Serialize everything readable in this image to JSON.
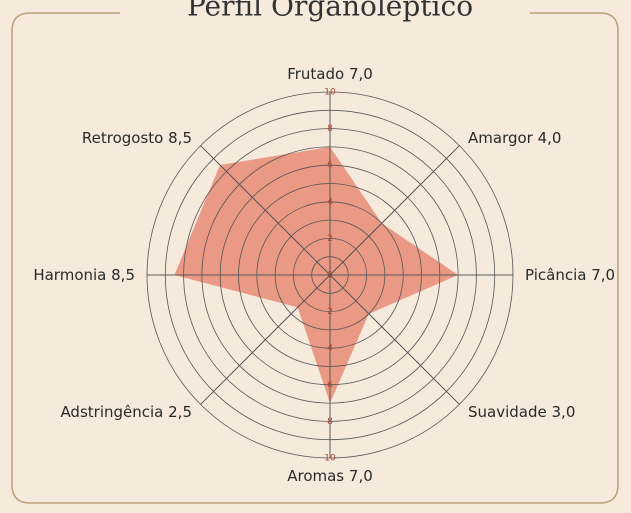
{
  "chart_data": {
    "type": "radar",
    "title": "Perfil Organoléptico",
    "categories": [
      "Frutado",
      "Amargor",
      "Picância",
      "Suavidade",
      "Aromas",
      "Adstringência",
      "Harmonia",
      "Retrogosto"
    ],
    "values": [
      7.0,
      4.0,
      7.0,
      3.0,
      7.0,
      2.5,
      8.5,
      8.5
    ],
    "value_labels": [
      "7,0",
      "4,0",
      "7,0",
      "3,0",
      "7,0",
      "2,5",
      "8,5",
      "8,5"
    ],
    "color": "#e8907a",
    "rlim": [
      0,
      10
    ],
    "rticks": [
      0,
      2,
      4,
      6,
      8,
      10
    ],
    "rminor": [
      1,
      3,
      5,
      7,
      9
    ],
    "grid": true
  }
}
